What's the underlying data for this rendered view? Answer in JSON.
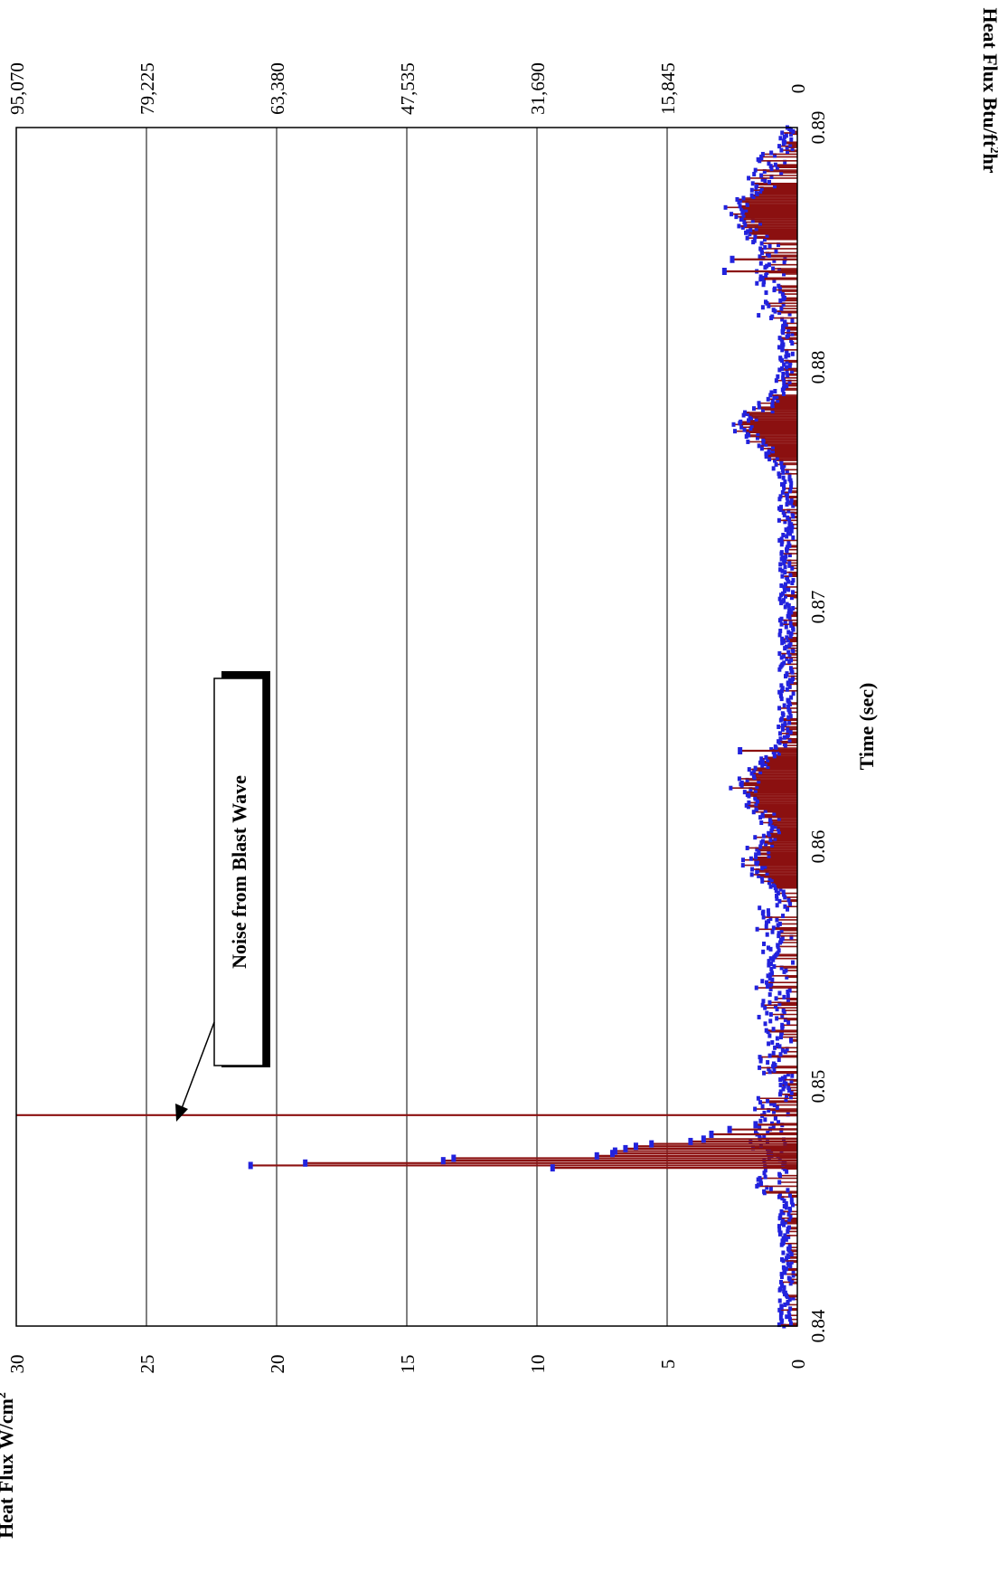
{
  "chart_data": {
    "type": "line",
    "orientation": "rotated-90",
    "x_axis": {
      "label": "Time (sec)",
      "range": [
        0.84,
        0.89
      ],
      "ticks": [
        "0.84",
        "0.85",
        "0.86",
        "0.87",
        "0.88",
        "0.89"
      ]
    },
    "y_axis_left": {
      "label_main": "Heat Flux W/cm",
      "label_sup": "2",
      "range": [
        0,
        30
      ],
      "ticks": [
        "0",
        "5",
        "10",
        "15",
        "20",
        "25",
        "30"
      ]
    },
    "y_axis_right": {
      "label_main": "Heat Flux Btu/ft",
      "label_sup": "2",
      "label_tail": "hr",
      "range": [
        0,
        95070
      ],
      "ticks": [
        "0",
        "15,845",
        "31,690",
        "47,535",
        "63,380",
        "79,225",
        "95,070"
      ]
    },
    "grid": true,
    "series": [
      {
        "color": "#8B1010",
        "marker_color": "#2222DD",
        "spikes": [
          {
            "x": 0.8467,
            "y": 21.0
          },
          {
            "x": 0.8468,
            "y": 18.9
          },
          {
            "x": 0.8466,
            "y": 9.4
          },
          {
            "x": 0.8469,
            "y": 13.6
          },
          {
            "x": 0.847,
            "y": 13.2
          },
          {
            "x": 0.8471,
            "y": 7.7
          },
          {
            "x": 0.8472,
            "y": 7.1
          },
          {
            "x": 0.8473,
            "y": 7.0
          },
          {
            "x": 0.8474,
            "y": 6.6
          },
          {
            "x": 0.8475,
            "y": 6.2
          },
          {
            "x": 0.8476,
            "y": 5.6
          },
          {
            "x": 0.8477,
            "y": 4.1
          },
          {
            "x": 0.8478,
            "y": 3.6
          },
          {
            "x": 0.848,
            "y": 3.3
          },
          {
            "x": 0.8482,
            "y": 2.6
          },
          {
            "x": 0.8484,
            "y": 1.6
          },
          {
            "x": 0.8488,
            "y": 30.0
          },
          {
            "x": 0.864,
            "y": 2.2
          },
          {
            "x": 0.884,
            "y": 2.8
          },
          {
            "x": 0.8845,
            "y": 2.5
          }
        ],
        "bumps": [
          {
            "x": 0.8595,
            "y": 1.6
          },
          {
            "x": 0.8625,
            "y": 2.1
          },
          {
            "x": 0.8775,
            "y": 1.9
          },
          {
            "x": 0.8865,
            "y": 1.6
          }
        ]
      }
    ],
    "annotation": {
      "text": "Noise from Blast Wave",
      "points_to": {
        "x": 0.8488,
        "y": 24
      }
    }
  },
  "colors": {
    "series_line": "#8B1010",
    "series_marker": "#2222DD",
    "grid": "#000000"
  }
}
